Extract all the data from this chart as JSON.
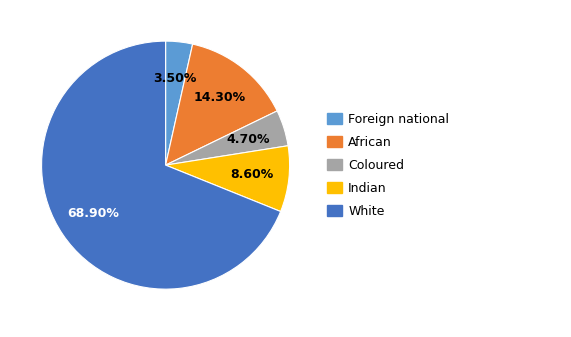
{
  "labels": [
    "Foreign national",
    "African",
    "Coloured",
    "Indian",
    "White"
  ],
  "values": [
    3.5,
    14.3,
    4.7,
    8.6,
    68.9
  ],
  "colors": [
    "#5b9bd5",
    "#ed7d31",
    "#a5a5a5",
    "#ffc000",
    "#4472c4"
  ],
  "pct_colors": [
    "#000000",
    "#000000",
    "#000000",
    "#000000",
    "#ffffff"
  ],
  "startangle": 90,
  "background_color": "#ffffff",
  "legend_fontsize": 9,
  "autopct_fontsize": 9
}
